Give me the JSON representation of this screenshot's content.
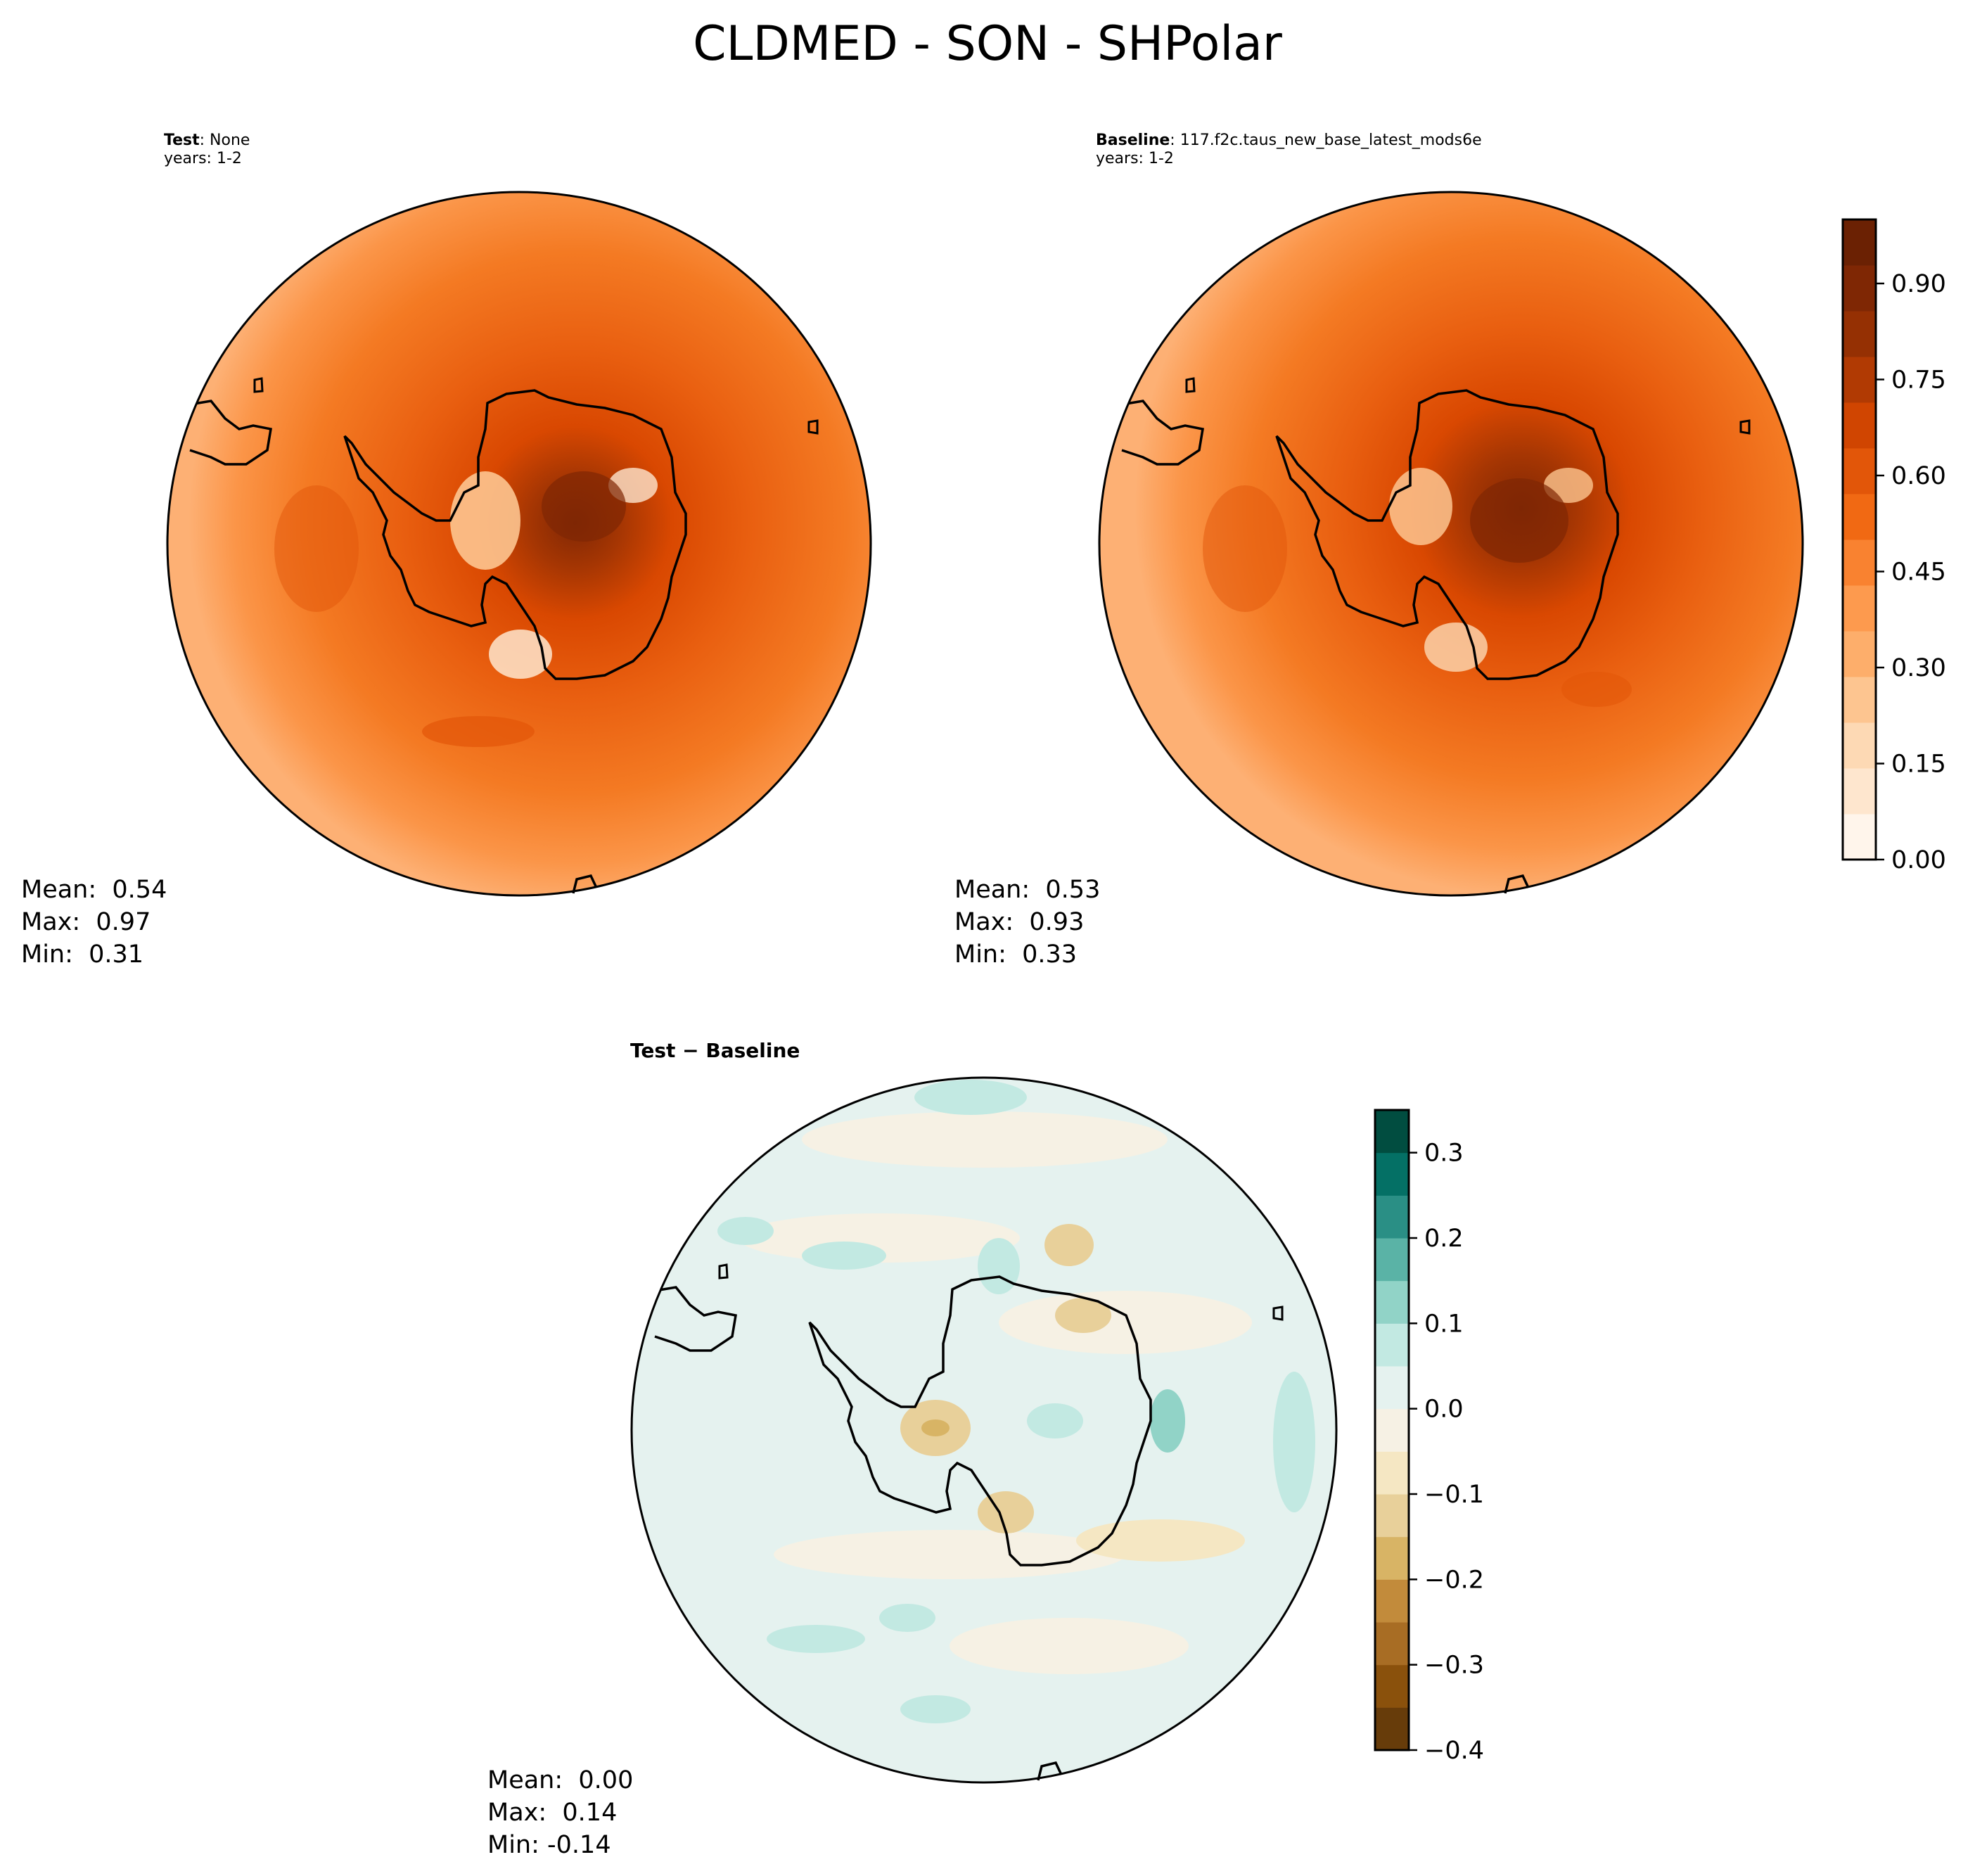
{
  "title": "CLDMED - SON - SHPolar",
  "panels": {
    "test": {
      "name_bold": "Test",
      "name_rest": ": None",
      "years": "years: 1-2",
      "stats": {
        "mean": "Mean:  0.54",
        "max": "Max:  0.97",
        "min": "Min:  0.31"
      }
    },
    "baseline": {
      "name_bold": "Baseline",
      "name_rest": ": 117.f2c.taus_new_base_latest_mods6e",
      "years": "years: 1-2",
      "stats": {
        "mean": "Mean:  0.53",
        "max": "Max:  0.93",
        "min": "Min:  0.33"
      }
    },
    "diff": {
      "name_bold": "Test − Baseline",
      "stats": {
        "mean": "Mean:  0.00",
        "max": "Max:  0.14",
        "min": "Min: -0.14"
      }
    }
  },
  "colorbars": {
    "main": {
      "ticks": [
        "0.00",
        "0.15",
        "0.30",
        "0.45",
        "0.60",
        "0.75",
        "0.90"
      ],
      "tick_values": [
        0.0,
        0.15,
        0.3,
        0.45,
        0.6,
        0.75,
        0.9
      ],
      "range": [
        0.0,
        1.0
      ],
      "colors": [
        "#fff5eb",
        "#fee6ce",
        "#fdd9b4",
        "#fdc590",
        "#fdae6b",
        "#fd9a4e",
        "#f98230",
        "#f16913",
        "#e25609",
        "#d04501",
        "#b13a03",
        "#953003",
        "#7f2704",
        "#6b2103"
      ]
    },
    "diff": {
      "ticks": [
        "−0.4",
        "−0.3",
        "−0.2",
        "−0.1",
        "0.0",
        "0.1",
        "0.2",
        "0.3"
      ],
      "tick_values": [
        -0.4,
        -0.3,
        -0.2,
        -0.1,
        0.0,
        0.1,
        0.2,
        0.3
      ],
      "range": [
        -0.4,
        0.35
      ],
      "colors": [
        "#673c0a",
        "#8a510c",
        "#a86d24",
        "#c28b3b",
        "#d8b465",
        "#e8d09a",
        "#f5e7c3",
        "#f6f1e4",
        "#e5f2ef",
        "#c2e9e2",
        "#91d3c7",
        "#5ab3a6",
        "#2a8f85",
        "#047065",
        "#014d40"
      ]
    }
  }
}
